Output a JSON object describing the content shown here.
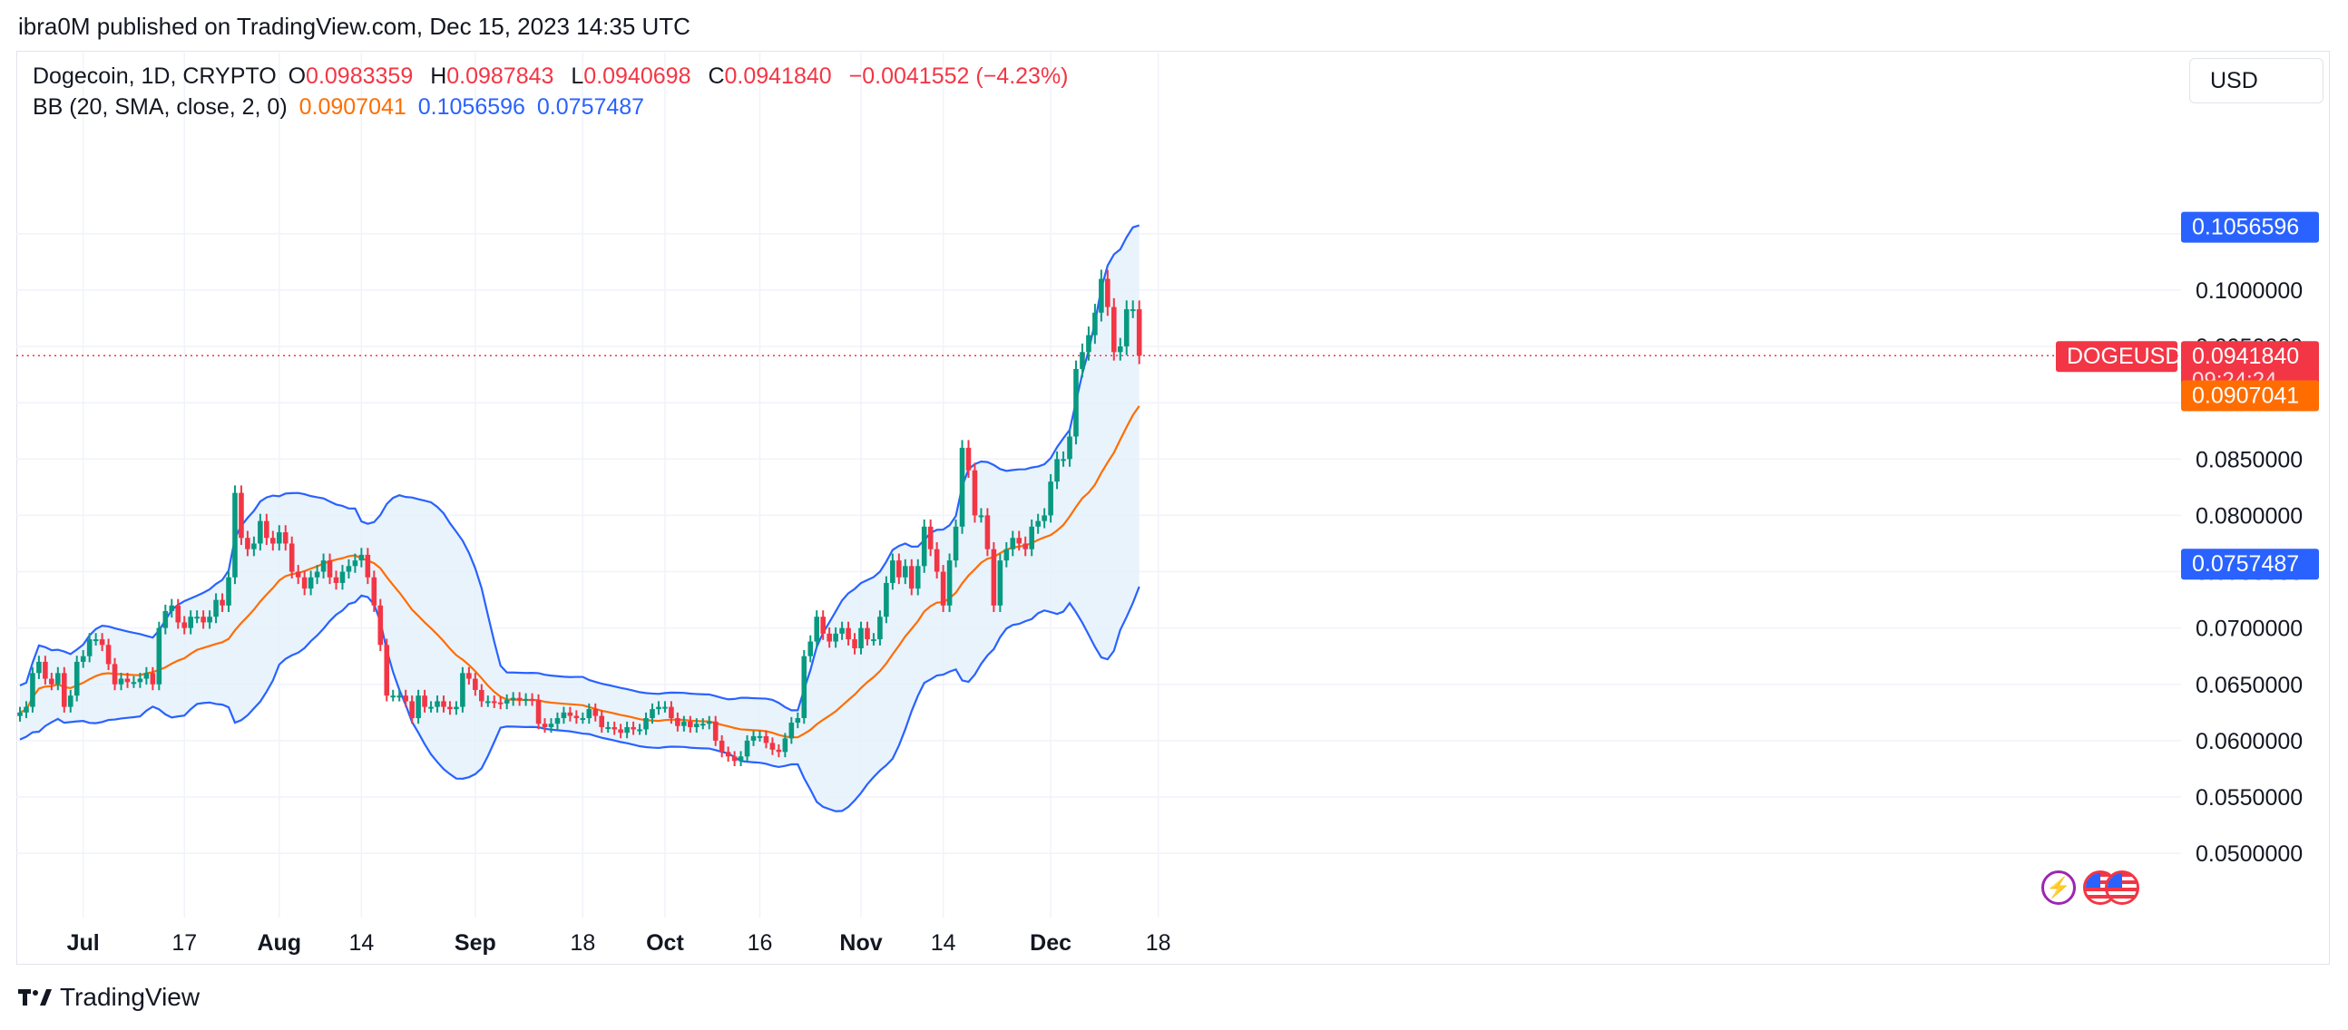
{
  "header": {
    "publisher": "ibra0M published on TradingView.com, Dec 15, 2023 14:35 UTC"
  },
  "legend": {
    "symbol": "Dogecoin, 1D, CRYPTO",
    "o_label": "O",
    "o_value": "0.0983359",
    "h_label": "H",
    "h_value": "0.0987843",
    "l_label": "L",
    "l_value": "0.0940698",
    "c_label": "C",
    "c_value": "0.0941840",
    "change": "−0.0041552 (−4.23%)",
    "bb_label": "BB (20, SMA, close, 2, 0)",
    "bb_basis": "0.0907041",
    "bb_upper": "0.1056596",
    "bb_lower": "0.0757487"
  },
  "currency_button": "USD",
  "footer": {
    "logo_text": "TradingView"
  },
  "icons": [
    "lightning-icon",
    "us-flag-icon",
    "us-flag-icon"
  ],
  "colors": {
    "up": "#089981",
    "down": "#f23645",
    "bb_band": "#2962ff",
    "bb_basis": "#ff6d00",
    "band_fill": "#e3f0fb"
  },
  "chart_data": {
    "type": "candlestick",
    "title": "Dogecoin, 1D, CRYPTO",
    "ylim": [
      0.0455,
      0.1165
    ],
    "grid": true,
    "x_ticks": [
      {
        "date": "2023-07-01",
        "label": "Jul",
        "bold": true
      },
      {
        "date": "2023-07-17",
        "label": "17",
        "bold": false
      },
      {
        "date": "2023-08-01",
        "label": "Aug",
        "bold": true
      },
      {
        "date": "2023-08-14",
        "label": "14",
        "bold": false
      },
      {
        "date": "2023-09-01",
        "label": "Sep",
        "bold": true
      },
      {
        "date": "2023-09-18",
        "label": "18",
        "bold": false
      },
      {
        "date": "2023-10-01",
        "label": "Oct",
        "bold": true
      },
      {
        "date": "2023-10-16",
        "label": "16",
        "bold": false
      },
      {
        "date": "2023-11-01",
        "label": "Nov",
        "bold": true
      },
      {
        "date": "2023-11-14",
        "label": "14",
        "bold": false
      },
      {
        "date": "2023-12-01",
        "label": "Dec",
        "bold": true
      },
      {
        "date": "2023-12-18",
        "label": "18",
        "bold": false
      }
    ],
    "y_ticks": [
      "0.0500000",
      "0.0550000",
      "0.0600000",
      "0.0650000",
      "0.0700000",
      "0.0750000",
      "0.0800000",
      "0.0850000",
      "0.0900000",
      "0.0950000",
      "0.1000000",
      "0.1050000"
    ],
    "price_labels": [
      {
        "text": "0.1056596",
        "value": 0.1056596,
        "color": "#2962ff"
      },
      {
        "text": "DOGEUSD",
        "value": 0.094184,
        "color": "#f23645"
      },
      {
        "text": "0.0941840",
        "value": 0.094184,
        "color": "#f23645"
      },
      {
        "text": "09:24:24",
        "value": 0.094184,
        "color": "#f23645"
      },
      {
        "text": "0.0907041",
        "value": 0.0907041,
        "color": "#ff6d00"
      },
      {
        "text": "0.0757487",
        "value": 0.0757487,
        "color": "#2962ff"
      }
    ],
    "last_price": 0.094184,
    "closes": [
      [
        "2023-06-21",
        0.0625
      ],
      [
        "2023-06-22",
        0.063
      ],
      [
        "2023-06-23",
        0.066
      ],
      [
        "2023-06-24",
        0.067
      ],
      [
        "2023-06-25",
        0.0655
      ],
      [
        "2023-06-26",
        0.065
      ],
      [
        "2023-06-27",
        0.066
      ],
      [
        "2023-06-28",
        0.063
      ],
      [
        "2023-06-29",
        0.064
      ],
      [
        "2023-06-30",
        0.067
      ],
      [
        "2023-07-01",
        0.0675
      ],
      [
        "2023-07-02",
        0.069
      ],
      [
        "2023-07-03",
        0.069
      ],
      [
        "2023-07-04",
        0.0685
      ],
      [
        "2023-07-05",
        0.0668
      ],
      [
        "2023-07-06",
        0.065
      ],
      [
        "2023-07-07",
        0.0655
      ],
      [
        "2023-07-08",
        0.0652
      ],
      [
        "2023-07-09",
        0.0652
      ],
      [
        "2023-07-10",
        0.0655
      ],
      [
        "2023-07-11",
        0.066
      ],
      [
        "2023-07-12",
        0.065
      ],
      [
        "2023-07-13",
        0.07
      ],
      [
        "2023-07-14",
        0.0715
      ],
      [
        "2023-07-15",
        0.072
      ],
      [
        "2023-07-16",
        0.0705
      ],
      [
        "2023-07-17",
        0.07
      ],
      [
        "2023-07-18",
        0.071
      ],
      [
        "2023-07-19",
        0.071
      ],
      [
        "2023-07-20",
        0.0705
      ],
      [
        "2023-07-21",
        0.071
      ],
      [
        "2023-07-22",
        0.0725
      ],
      [
        "2023-07-23",
        0.072
      ],
      [
        "2023-07-24",
        0.0745
      ],
      [
        "2023-07-25",
        0.082
      ],
      [
        "2023-07-26",
        0.078
      ],
      [
        "2023-07-27",
        0.077
      ],
      [
        "2023-07-28",
        0.0775
      ],
      [
        "2023-07-29",
        0.0795
      ],
      [
        "2023-07-30",
        0.078
      ],
      [
        "2023-07-31",
        0.0775
      ],
      [
        "2023-08-01",
        0.0785
      ],
      [
        "2023-08-02",
        0.0775
      ],
      [
        "2023-08-03",
        0.075
      ],
      [
        "2023-08-04",
        0.0745
      ],
      [
        "2023-08-05",
        0.0735
      ],
      [
        "2023-08-06",
        0.0745
      ],
      [
        "2023-08-07",
        0.075
      ],
      [
        "2023-08-08",
        0.076
      ],
      [
        "2023-08-09",
        0.0745
      ],
      [
        "2023-08-10",
        0.074
      ],
      [
        "2023-08-11",
        0.075
      ],
      [
        "2023-08-12",
        0.0755
      ],
      [
        "2023-08-13",
        0.076
      ],
      [
        "2023-08-14",
        0.0765
      ],
      [
        "2023-08-15",
        0.0745
      ],
      [
        "2023-08-16",
        0.072
      ],
      [
        "2023-08-17",
        0.0685
      ],
      [
        "2023-08-18",
        0.064
      ],
      [
        "2023-08-19",
        0.064
      ],
      [
        "2023-08-20",
        0.064
      ],
      [
        "2023-08-21",
        0.0635
      ],
      [
        "2023-08-22",
        0.062
      ],
      [
        "2023-08-23",
        0.064
      ],
      [
        "2023-08-24",
        0.063
      ],
      [
        "2023-08-25",
        0.063
      ],
      [
        "2023-08-26",
        0.0635
      ],
      [
        "2023-08-27",
        0.063
      ],
      [
        "2023-08-28",
        0.0628
      ],
      [
        "2023-08-29",
        0.063
      ],
      [
        "2023-08-30",
        0.066
      ],
      [
        "2023-08-31",
        0.0655
      ],
      [
        "2023-09-01",
        0.0645
      ],
      [
        "2023-09-02",
        0.0635
      ],
      [
        "2023-09-03",
        0.0635
      ],
      [
        "2023-09-04",
        0.0634
      ],
      [
        "2023-09-05",
        0.0633
      ],
      [
        "2023-09-06",
        0.0636
      ],
      [
        "2023-09-07",
        0.0638
      ],
      [
        "2023-09-08",
        0.0636
      ],
      [
        "2023-09-09",
        0.0637
      ],
      [
        "2023-09-10",
        0.0636
      ],
      [
        "2023-09-11",
        0.0615
      ],
      [
        "2023-09-12",
        0.0612
      ],
      [
        "2023-09-13",
        0.0615
      ],
      [
        "2023-09-14",
        0.062
      ],
      [
        "2023-09-15",
        0.0625
      ],
      [
        "2023-09-16",
        0.0622
      ],
      [
        "2023-09-17",
        0.062
      ],
      [
        "2023-09-18",
        0.062
      ],
      [
        "2023-09-19",
        0.0628
      ],
      [
        "2023-09-20",
        0.0622
      ],
      [
        "2023-09-21",
        0.0612
      ],
      [
        "2023-09-22",
        0.0612
      ],
      [
        "2023-09-23",
        0.061
      ],
      [
        "2023-09-24",
        0.0607
      ],
      [
        "2023-09-25",
        0.0612
      ],
      [
        "2023-09-26",
        0.061
      ],
      [
        "2023-09-27",
        0.061
      ],
      [
        "2023-09-28",
        0.062
      ],
      [
        "2023-09-29",
        0.0628
      ],
      [
        "2023-09-30",
        0.063
      ],
      [
        "2023-10-01",
        0.063
      ],
      [
        "2023-10-02",
        0.062
      ],
      [
        "2023-10-03",
        0.0613
      ],
      [
        "2023-10-04",
        0.0617
      ],
      [
        "2023-10-05",
        0.0612
      ],
      [
        "2023-10-06",
        0.0615
      ],
      [
        "2023-10-07",
        0.0615
      ],
      [
        "2023-10-08",
        0.0617
      ],
      [
        "2023-10-09",
        0.06
      ],
      [
        "2023-10-10",
        0.059
      ],
      [
        "2023-10-11",
        0.0586
      ],
      [
        "2023-10-12",
        0.0582
      ],
      [
        "2023-10-13",
        0.0586
      ],
      [
        "2023-10-14",
        0.06
      ],
      [
        "2023-10-15",
        0.0604
      ],
      [
        "2023-10-16",
        0.0604
      ],
      [
        "2023-10-17",
        0.0598
      ],
      [
        "2023-10-18",
        0.0592
      ],
      [
        "2023-10-19",
        0.059
      ],
      [
        "2023-10-20",
        0.0602
      ],
      [
        "2023-10-21",
        0.0616
      ],
      [
        "2023-10-22",
        0.062
      ],
      [
        "2023-10-23",
        0.0675
      ],
      [
        "2023-10-24",
        0.0688
      ],
      [
        "2023-10-25",
        0.071
      ],
      [
        "2023-10-26",
        0.0695
      ],
      [
        "2023-10-27",
        0.0688
      ],
      [
        "2023-10-28",
        0.0695
      ],
      [
        "2023-10-29",
        0.07
      ],
      [
        "2023-10-30",
        0.069
      ],
      [
        "2023-10-31",
        0.0682
      ],
      [
        "2023-11-01",
        0.07
      ],
      [
        "2023-11-02",
        0.069
      ],
      [
        "2023-11-03",
        0.069
      ],
      [
        "2023-11-04",
        0.071
      ],
      [
        "2023-11-05",
        0.074
      ],
      [
        "2023-11-06",
        0.076
      ],
      [
        "2023-11-07",
        0.0745
      ],
      [
        "2023-11-08",
        0.0755
      ],
      [
        "2023-11-09",
        0.0735
      ],
      [
        "2023-11-10",
        0.0755
      ],
      [
        "2023-11-11",
        0.079
      ],
      [
        "2023-11-12",
        0.077
      ],
      [
        "2023-11-13",
        0.075
      ],
      [
        "2023-11-14",
        0.072
      ],
      [
        "2023-11-15",
        0.076
      ],
      [
        "2023-11-16",
        0.079
      ],
      [
        "2023-11-17",
        0.086
      ],
      [
        "2023-11-18",
        0.084
      ],
      [
        "2023-11-19",
        0.08
      ],
      [
        "2023-11-20",
        0.08
      ],
      [
        "2023-11-21",
        0.077
      ],
      [
        "2023-11-22",
        0.072
      ],
      [
        "2023-11-23",
        0.076
      ],
      [
        "2023-11-24",
        0.077
      ],
      [
        "2023-11-25",
        0.078
      ],
      [
        "2023-11-26",
        0.0775
      ],
      [
        "2023-11-27",
        0.077
      ],
      [
        "2023-11-28",
        0.079
      ],
      [
        "2023-11-29",
        0.0795
      ],
      [
        "2023-11-30",
        0.08
      ],
      [
        "2023-12-01",
        0.083
      ],
      [
        "2023-12-02",
        0.085
      ],
      [
        "2023-12-03",
        0.085
      ],
      [
        "2023-12-04",
        0.087
      ],
      [
        "2023-12-05",
        0.093
      ],
      [
        "2023-12-06",
        0.0945
      ],
      [
        "2023-12-07",
        0.096
      ],
      [
        "2023-12-08",
        0.098
      ],
      [
        "2023-12-09",
        0.101
      ],
      [
        "2023-12-10",
        0.0985
      ],
      [
        "2023-12-11",
        0.0945
      ],
      [
        "2023-12-12",
        0.095
      ],
      [
        "2023-12-13",
        0.0983
      ],
      [
        "2023-12-14",
        0.0983
      ],
      [
        "2023-12-15",
        0.094184
      ]
    ]
  }
}
